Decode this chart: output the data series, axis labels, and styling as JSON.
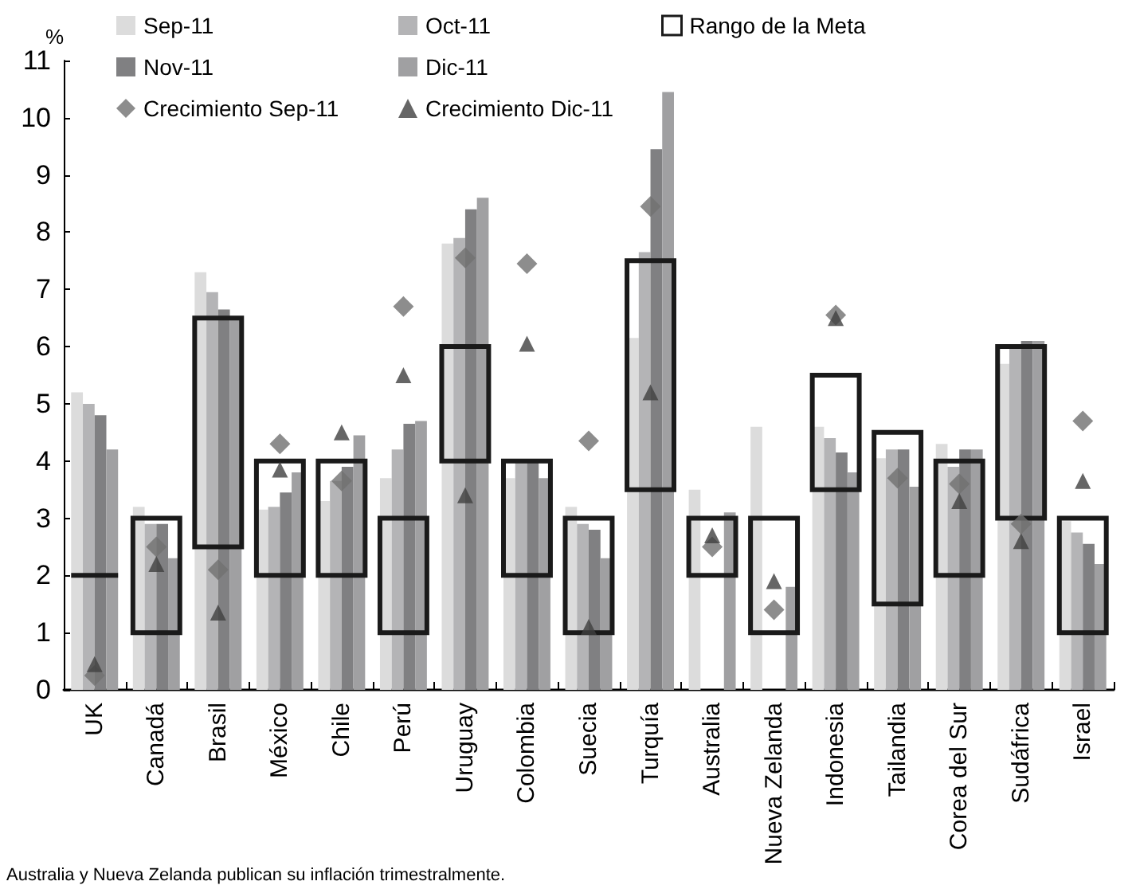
{
  "chart_data": {
    "type": "bar",
    "ylabel": "%",
    "categories": [
      "UK",
      "Canadá",
      "Brasil",
      "México",
      "Chile",
      "Perú",
      "Uruguay",
      "Colombia",
      "Suecia",
      "Turquía",
      "Australia",
      "Nueva Zelanda",
      "Indonesia",
      "Tailandia",
      "Corea del Sur",
      "Sudáfrica",
      "Israel"
    ],
    "ylim": [
      0,
      11
    ],
    "yticks": [
      0,
      1,
      2,
      3,
      4,
      5,
      6,
      7,
      8,
      9,
      10,
      11
    ],
    "grid": false,
    "legend": "top",
    "annotations": [
      "Australia y Nueva Zelanda publican su inflación trimestralmente."
    ],
    "series": [
      {
        "name": "Sep-11",
        "color": "#dcdcdc",
        "values": [
          5.2,
          3.2,
          7.3,
          3.15,
          3.3,
          3.7,
          7.8,
          3.7,
          3.2,
          6.15,
          3.5,
          4.6,
          4.6,
          4.05,
          4.3,
          5.7,
          2.95
        ]
      },
      {
        "name": "Oct-11",
        "color": "#b4b4b6",
        "values": [
          5.0,
          2.9,
          6.95,
          3.2,
          3.65,
          4.2,
          7.9,
          4.0,
          2.9,
          7.65,
          null,
          null,
          4.4,
          4.2,
          3.9,
          6.0,
          2.75
        ]
      },
      {
        "name": "Nov-11",
        "color": "#808082",
        "values": [
          4.8,
          2.9,
          6.65,
          3.45,
          3.9,
          4.65,
          8.4,
          4.0,
          2.8,
          9.45,
          null,
          null,
          4.15,
          4.2,
          4.2,
          6.1,
          2.55
        ]
      },
      {
        "name": "Dic-11",
        "color": "#a0a0a2",
        "values": [
          4.2,
          2.3,
          6.5,
          3.8,
          4.45,
          4.7,
          8.6,
          3.7,
          2.3,
          10.45,
          3.1,
          1.8,
          3.8,
          3.55,
          4.2,
          6.1,
          2.2
        ]
      },
      {
        "type": "scatter",
        "name": "Crecimiento Sep-11",
        "color": "#707070",
        "marker": "diamond",
        "values": [
          0.25,
          2.5,
          2.1,
          4.3,
          3.65,
          6.7,
          7.55,
          7.45,
          4.35,
          8.45,
          2.5,
          1.4,
          6.55,
          3.7,
          3.6,
          2.9,
          4.7
        ]
      },
      {
        "type": "scatter",
        "name": "Crecimiento Dic-11",
        "color": "#404040",
        "marker": "triangle",
        "values": [
          0.45,
          2.2,
          1.35,
          3.85,
          4.5,
          5.5,
          3.4,
          6.05,
          1.1,
          5.2,
          2.7,
          1.9,
          6.5,
          null,
          3.3,
          2.6,
          3.65
        ]
      },
      {
        "name": "Rango de la Meta",
        "color": "#1a1a1a",
        "base": [
          2,
          1,
          2.5,
          2,
          2,
          1,
          4,
          2,
          1,
          3.5,
          2,
          1,
          3.5,
          1.5,
          2,
          3,
          1
        ],
        "values": [
          0,
          2,
          4,
          2,
          2,
          2,
          2,
          2,
          2,
          4,
          1,
          2,
          2,
          3,
          2,
          3,
          2
        ]
      }
    ]
  }
}
